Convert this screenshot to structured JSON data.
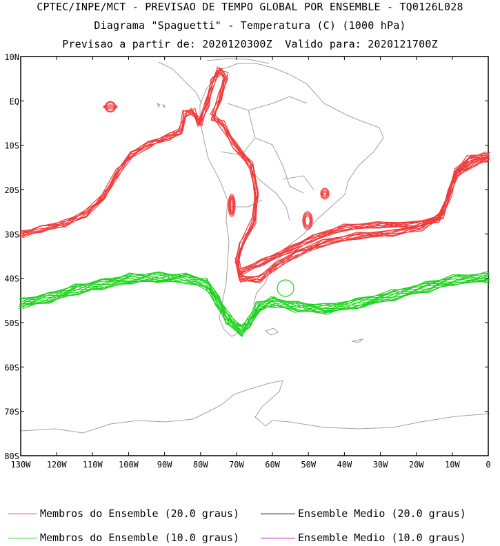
{
  "title": {
    "line1": "CPTEC/INPE/MCT - PREVISAO DE TEMPO GLOBAL POR ENSEMBLE - TQ0126L028",
    "line2": "Diagrama \"Spaguetti\" - Temperatura (C) (1000 hPa)",
    "line3": "Previsao a partir de: 2020120300Z  Valido para: 2020121700Z"
  },
  "axes": {
    "lat_labels": [
      "10N",
      "EQ",
      "10S",
      "20S",
      "30S",
      "40S",
      "50S",
      "60S",
      "70S",
      "80S"
    ],
    "lon_labels": [
      "130W",
      "120W",
      "110W",
      "100W",
      "90W",
      "80W",
      "70W",
      "60W",
      "50W",
      "40W",
      "30W",
      "20W",
      "10W",
      "0"
    ],
    "lat_range": [
      10,
      -80
    ],
    "lon_range": [
      -130,
      0
    ]
  },
  "colors": {
    "member_20": "#f03c3c",
    "member_10": "#1ed21e",
    "mean_20": "#000000",
    "mean_10": "#c800c8",
    "coast": "#a0a0a0"
  },
  "legend": {
    "member_20_label": "Membros do Ensemble (20.0 graus)",
    "mean_20_label": "Ensemble Medio (20.0 graus)",
    "member_10_label": "Membros do Ensemble (10.0 graus)",
    "mean_10_label": "Ensemble Medio (10.0 graus)"
  }
}
